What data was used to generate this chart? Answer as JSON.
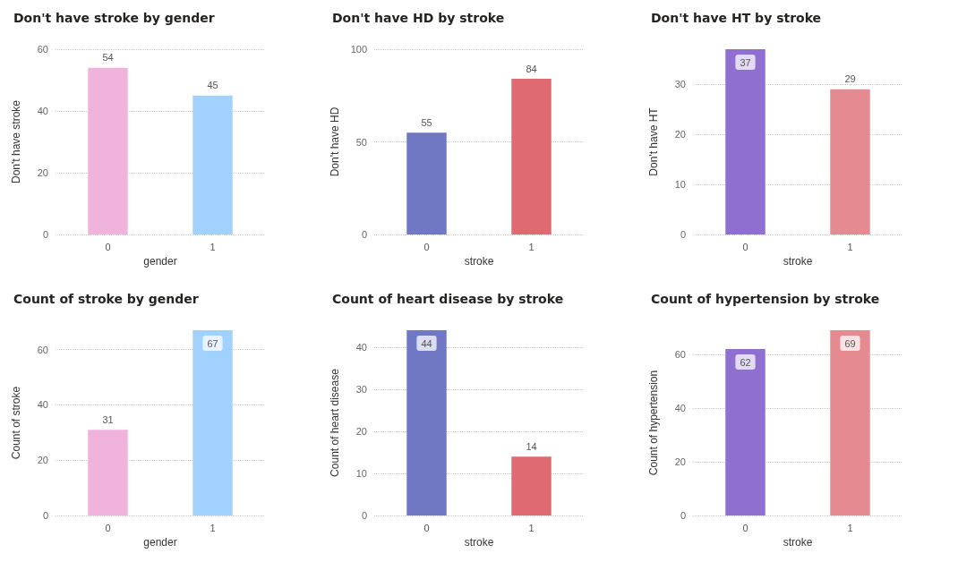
{
  "chart_data": [
    {
      "type": "bar",
      "title": "Don't have stroke by gender",
      "xlabel": "gender",
      "ylabel": "Don't have stroke",
      "categories": [
        "0",
        "1"
      ],
      "values": [
        54,
        45
      ],
      "colors": [
        "#f0b3dc",
        "#a0d1ff"
      ],
      "ylim": [
        0,
        60
      ],
      "yticks": [
        0,
        20,
        40,
        60
      ],
      "grid": "y",
      "data_labels": true
    },
    {
      "type": "bar",
      "title": "Don't have HD by stroke",
      "xlabel": "stroke",
      "ylabel": "Don't have HD",
      "categories": [
        "0",
        "1"
      ],
      "values": [
        55,
        84
      ],
      "colors": [
        "#7078c4",
        "#e06a72"
      ],
      "ylim": [
        0,
        100
      ],
      "yticks": [
        0,
        50,
        100
      ],
      "grid": "y",
      "data_labels": true
    },
    {
      "type": "bar",
      "title": "Don't have HT by stroke",
      "xlabel": "stroke",
      "ylabel": "Don't have HT",
      "categories": [
        "0",
        "1"
      ],
      "values": [
        37,
        29
      ],
      "colors": [
        "#8f6fcf",
        "#e68a92"
      ],
      "ylim": [
        0,
        37
      ],
      "yticks": [
        0,
        10,
        20,
        30
      ],
      "grid": "y",
      "data_labels": true
    },
    {
      "type": "bar",
      "title": "Count of stroke by gender",
      "xlabel": "gender",
      "ylabel": "Count of stroke",
      "categories": [
        "0",
        "1"
      ],
      "values": [
        31,
        67
      ],
      "colors": [
        "#f0b3dc",
        "#a0d1ff"
      ],
      "ylim": [
        0,
        67
      ],
      "yticks": [
        0,
        20,
        40,
        60
      ],
      "grid": "y",
      "data_labels": true
    },
    {
      "type": "bar",
      "title": "Count of heart disease by stroke",
      "xlabel": "stroke",
      "ylabel": "Count of heart disease",
      "categories": [
        "0",
        "1"
      ],
      "values": [
        44,
        14
      ],
      "colors": [
        "#7078c4",
        "#e06a72"
      ],
      "ylim": [
        0,
        44
      ],
      "yticks": [
        0,
        10,
        20,
        30,
        40
      ],
      "grid": "y",
      "data_labels": true
    },
    {
      "type": "bar",
      "title": "Count of hypertension by stroke",
      "xlabel": "stroke",
      "ylabel": "Count of hypertension",
      "categories": [
        "0",
        "1"
      ],
      "values": [
        62,
        69
      ],
      "colors": [
        "#8f6fcf",
        "#e68a92"
      ],
      "ylim": [
        0,
        69
      ],
      "yticks": [
        0,
        20,
        40,
        60
      ],
      "grid": "y",
      "data_labels": true
    }
  ]
}
